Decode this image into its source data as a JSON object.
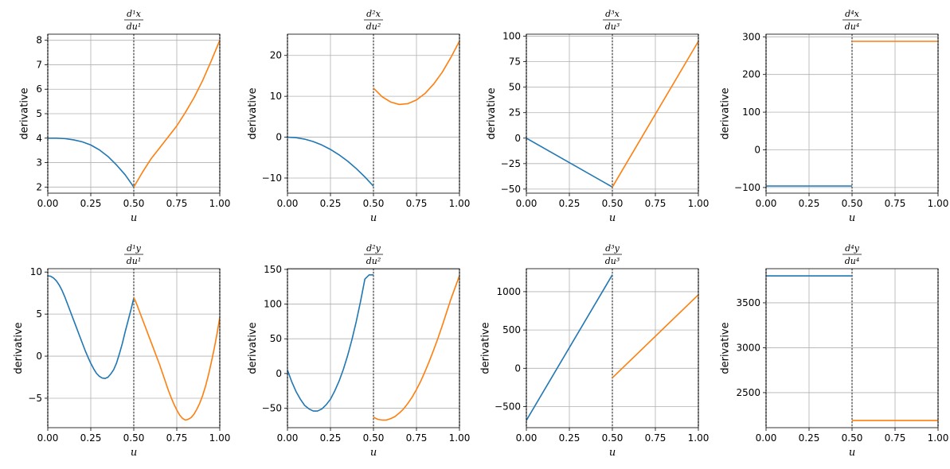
{
  "series_colors": {
    "segment_1": "#1f77b4",
    "segment_2": "#ff7f0e"
  },
  "chart_data": [
    {
      "type": "line",
      "title": "d¹x/du¹",
      "title_num": "d1x",
      "title_den": "du1",
      "xlabel": "u",
      "ylabel": "derivative",
      "xlim": [
        0,
        1
      ],
      "ylim": [
        1.75,
        8.25
      ],
      "xticks": [
        0.0,
        0.25,
        0.5,
        0.75,
        1.0
      ],
      "xtick_labels": [
        "0.00",
        "0.25",
        "0.50",
        "0.75",
        "1.00"
      ],
      "yticks": [
        2,
        3,
        4,
        5,
        6,
        7,
        8
      ],
      "ytick_labels": [
        "2",
        "3",
        "4",
        "5",
        "6",
        "7",
        "8"
      ],
      "vlines": [
        0,
        0.5,
        1
      ],
      "grid": true,
      "series": [
        {
          "x": [
            0,
            0.05,
            0.1,
            0.15,
            0.2,
            0.25,
            0.3,
            0.35,
            0.4,
            0.45,
            0.5
          ],
          "y": [
            4.0,
            4.0,
            3.98,
            3.93,
            3.85,
            3.72,
            3.52,
            3.25,
            2.9,
            2.5,
            2.0
          ]
        },
        {
          "x": [
            0.5,
            0.55,
            0.6,
            0.65,
            0.7,
            0.75,
            0.8,
            0.85,
            0.9,
            0.95,
            1.0
          ],
          "y": [
            2.0,
            2.6,
            3.15,
            3.6,
            4.05,
            4.5,
            5.05,
            5.65,
            6.35,
            7.15,
            8.0
          ]
        }
      ]
    },
    {
      "type": "line",
      "title": "d²x/du²",
      "title_num": "d2x",
      "title_den": "du2",
      "xlabel": "u",
      "ylabel": "derivative",
      "xlim": [
        0,
        1
      ],
      "ylim": [
        -13.7,
        25.2
      ],
      "xticks": [
        0.0,
        0.25,
        0.5,
        0.75,
        1.0
      ],
      "xtick_labels": [
        "0.00",
        "0.25",
        "0.50",
        "0.75",
        "1.00"
      ],
      "yticks": [
        -10,
        0,
        10,
        20
      ],
      "ytick_labels": [
        "−10",
        "0",
        "10",
        "20"
      ],
      "vlines": [
        0,
        0.5,
        1
      ],
      "grid": true,
      "series": [
        {
          "x": [
            0,
            0.05,
            0.1,
            0.15,
            0.2,
            0.25,
            0.3,
            0.35,
            0.4,
            0.45,
            0.5
          ],
          "y": [
            0,
            -0.12,
            -0.48,
            -1.08,
            -1.92,
            -3.0,
            -4.32,
            -5.88,
            -7.68,
            -9.72,
            -12.0
          ]
        },
        {
          "x": [
            0.5,
            0.55,
            0.6,
            0.65,
            0.7,
            0.75,
            0.8,
            0.85,
            0.9,
            0.95,
            1.0
          ],
          "y": [
            12.0,
            9.9,
            8.6,
            8.0,
            8.2,
            9.1,
            10.7,
            13.0,
            15.9,
            19.5,
            23.5
          ]
        }
      ]
    },
    {
      "type": "line",
      "title": "d³x/du³",
      "title_num": "d3x",
      "title_den": "du3",
      "xlabel": "u",
      "ylabel": "derivative",
      "xlim": [
        0,
        1
      ],
      "ylim": [
        -54,
        102
      ],
      "xticks": [
        0.0,
        0.25,
        0.5,
        0.75,
        1.0
      ],
      "xtick_labels": [
        "0.00",
        "0.25",
        "0.50",
        "0.75",
        "1.00"
      ],
      "yticks": [
        -50,
        -25,
        0,
        25,
        50,
        75,
        100
      ],
      "ytick_labels": [
        "−50",
        "−25",
        "0",
        "25",
        "50",
        "75",
        "100"
      ],
      "vlines": [
        0,
        0.5,
        1
      ],
      "grid": true,
      "series": [
        {
          "x": [
            0,
            0.5
          ],
          "y": [
            0,
            -48
          ]
        },
        {
          "x": [
            0.5,
            1.0
          ],
          "y": [
            -48,
            95
          ]
        }
      ]
    },
    {
      "type": "line",
      "title": "d⁴x/du⁴",
      "title_num": "d4x",
      "title_den": "du4",
      "xlabel": "u",
      "ylabel": "derivative",
      "xlim": [
        0,
        1
      ],
      "ylim": [
        -115,
        307
      ],
      "xticks": [
        0.0,
        0.25,
        0.5,
        0.75,
        1.0
      ],
      "xtick_labels": [
        "0.00",
        "0.25",
        "0.50",
        "0.75",
        "1.00"
      ],
      "yticks": [
        -100,
        0,
        100,
        200,
        300
      ],
      "ytick_labels": [
        "−100",
        "0",
        "100",
        "200",
        "300"
      ],
      "vlines": [
        0,
        0.5,
        1
      ],
      "grid": true,
      "series": [
        {
          "x": [
            0,
            0.5
          ],
          "y": [
            -96,
            -96
          ]
        },
        {
          "x": [
            0.5,
            1.0
          ],
          "y": [
            288,
            288
          ]
        }
      ]
    },
    {
      "type": "line",
      "title": "d¹y/du¹",
      "title_num": "d1y",
      "title_den": "du1",
      "xlabel": "u",
      "ylabel": "derivative",
      "xlim": [
        0,
        1
      ],
      "ylim": [
        -8.5,
        10.4
      ],
      "xticks": [
        0.0,
        0.25,
        0.5,
        0.75,
        1.0
      ],
      "xtick_labels": [
        "0.00",
        "0.25",
        "0.50",
        "0.75",
        "1.00"
      ],
      "yticks": [
        -5,
        0,
        5,
        10
      ],
      "ytick_labels": [
        "−5",
        "0",
        "5",
        "10"
      ],
      "vlines": [
        0,
        0.5,
        1
      ],
      "grid": true,
      "series": [
        {
          "x": [
            0,
            0.0167,
            0.0333,
            0.05,
            0.0667,
            0.0833,
            0.1,
            0.1167,
            0.1333,
            0.15,
            0.1667,
            0.1833,
            0.2,
            0.2167,
            0.2333,
            0.25,
            0.2667,
            0.2833,
            0.3,
            0.3167,
            0.3333,
            0.35,
            0.3667,
            0.3833,
            0.4,
            0.4167,
            0.4333,
            0.45,
            0.4667,
            0.4833,
            0.5
          ],
          "y": [
            9.55,
            9.5,
            9.3,
            8.95,
            8.45,
            7.8,
            7.0,
            6.1,
            5.2,
            4.3,
            3.4,
            2.5,
            1.6,
            0.7,
            -0.1,
            -0.85,
            -1.5,
            -2.05,
            -2.4,
            -2.6,
            -2.65,
            -2.5,
            -2.1,
            -1.6,
            -0.8,
            0.3,
            1.5,
            2.9,
            4.2,
            5.5,
            6.9
          ]
        },
        {
          "x": [
            0.5,
            0.5167,
            0.5333,
            0.55,
            0.5667,
            0.5833,
            0.6,
            0.6167,
            0.6333,
            0.65,
            0.6667,
            0.6833,
            0.7,
            0.7167,
            0.7333,
            0.75,
            0.7667,
            0.7833,
            0.8,
            0.8167,
            0.8333,
            0.85,
            0.8667,
            0.8833,
            0.9,
            0.9167,
            0.9333,
            0.95,
            0.9667,
            0.9833,
            1.0
          ],
          "y": [
            7.0,
            6.2,
            5.3,
            4.4,
            3.5,
            2.6,
            1.7,
            0.8,
            -0.1,
            -1.0,
            -2.0,
            -3.0,
            -4.0,
            -4.9,
            -5.7,
            -6.4,
            -7.0,
            -7.4,
            -7.6,
            -7.5,
            -7.3,
            -6.9,
            -6.3,
            -5.6,
            -4.7,
            -3.6,
            -2.3,
            -0.8,
            0.8,
            2.6,
            4.6
          ]
        }
      ]
    },
    {
      "type": "line",
      "title": "d²y/du²",
      "title_num": "d2y",
      "title_den": "du2",
      "xlabel": "u",
      "ylabel": "derivative",
      "xlim": [
        0,
        1
      ],
      "ylim": [
        -78,
        151
      ],
      "xticks": [
        0.0,
        0.25,
        0.5,
        0.75,
        1.0
      ],
      "xtick_labels": [
        "0.00",
        "0.25",
        "0.50",
        "0.75",
        "1.00"
      ],
      "yticks": [
        -50,
        0,
        50,
        100,
        150
      ],
      "ytick_labels": [
        "−50",
        "0",
        "50",
        "100",
        "150"
      ],
      "vlines": [
        0,
        0.5,
        1
      ],
      "grid": true,
      "series": [
        {
          "x": [
            0,
            0.025,
            0.05,
            0.075,
            0.1,
            0.125,
            0.15,
            0.175,
            0.2,
            0.225,
            0.25,
            0.275,
            0.3,
            0.325,
            0.35,
            0.375,
            0.4,
            0.425,
            0.45,
            0.475,
            0.5
          ],
          "y": [
            5,
            -12,
            -26,
            -37,
            -46,
            -51,
            -54,
            -54,
            -51,
            -45,
            -37,
            -25,
            -11,
            6,
            26,
            49,
            75,
            104,
            136,
            142,
            142
          ]
        },
        {
          "x": [
            0.5,
            0.525,
            0.55,
            0.575,
            0.6,
            0.625,
            0.65,
            0.675,
            0.7,
            0.725,
            0.75,
            0.775,
            0.8,
            0.825,
            0.85,
            0.875,
            0.9,
            0.925,
            0.95,
            0.975,
            1.0
          ],
          "y": [
            -63,
            -66,
            -67,
            -67,
            -65,
            -62,
            -57,
            -51,
            -43,
            -34,
            -23,
            -11,
            3,
            18,
            34,
            51,
            69,
            88,
            107,
            124,
            141
          ]
        }
      ]
    },
    {
      "type": "line",
      "title": "d³y/du³",
      "title_num": "d3y",
      "title_den": "du3",
      "xlabel": "u",
      "ylabel": "derivative",
      "xlim": [
        0,
        1
      ],
      "ylim": [
        -775,
        1300
      ],
      "xticks": [
        0.0,
        0.25,
        0.5,
        0.75,
        1.0
      ],
      "xtick_labels": [
        "0.00",
        "0.25",
        "0.50",
        "0.75",
        "1.00"
      ],
      "yticks": [
        -500,
        0,
        500,
        1000
      ],
      "ytick_labels": [
        "−500",
        "0",
        "500",
        "1000"
      ],
      "vlines": [
        0,
        0.5,
        1
      ],
      "grid": true,
      "series": [
        {
          "x": [
            0,
            0.5
          ],
          "y": [
            -680,
            1220
          ]
        },
        {
          "x": [
            0.5,
            1.0
          ],
          "y": [
            -125,
            960
          ]
        }
      ]
    },
    {
      "type": "line",
      "title": "d⁴y/du⁴",
      "title_num": "d4y",
      "title_den": "du4",
      "xlabel": "u",
      "ylabel": "derivative",
      "xlim": [
        0,
        1
      ],
      "ylim": [
        2110,
        3880
      ],
      "xticks": [
        0.0,
        0.25,
        0.5,
        0.75,
        1.0
      ],
      "xtick_labels": [
        "0.00",
        "0.25",
        "0.50",
        "0.75",
        "1.00"
      ],
      "yticks": [
        2500,
        3000,
        3500
      ],
      "ytick_labels": [
        "2500",
        "3000",
        "3500"
      ],
      "vlines": [
        0,
        0.5,
        1
      ],
      "grid": true,
      "series": [
        {
          "x": [
            0,
            0.5
          ],
          "y": [
            3800,
            3800
          ]
        },
        {
          "x": [
            0.5,
            1.0
          ],
          "y": [
            2190,
            2190
          ]
        }
      ]
    }
  ]
}
